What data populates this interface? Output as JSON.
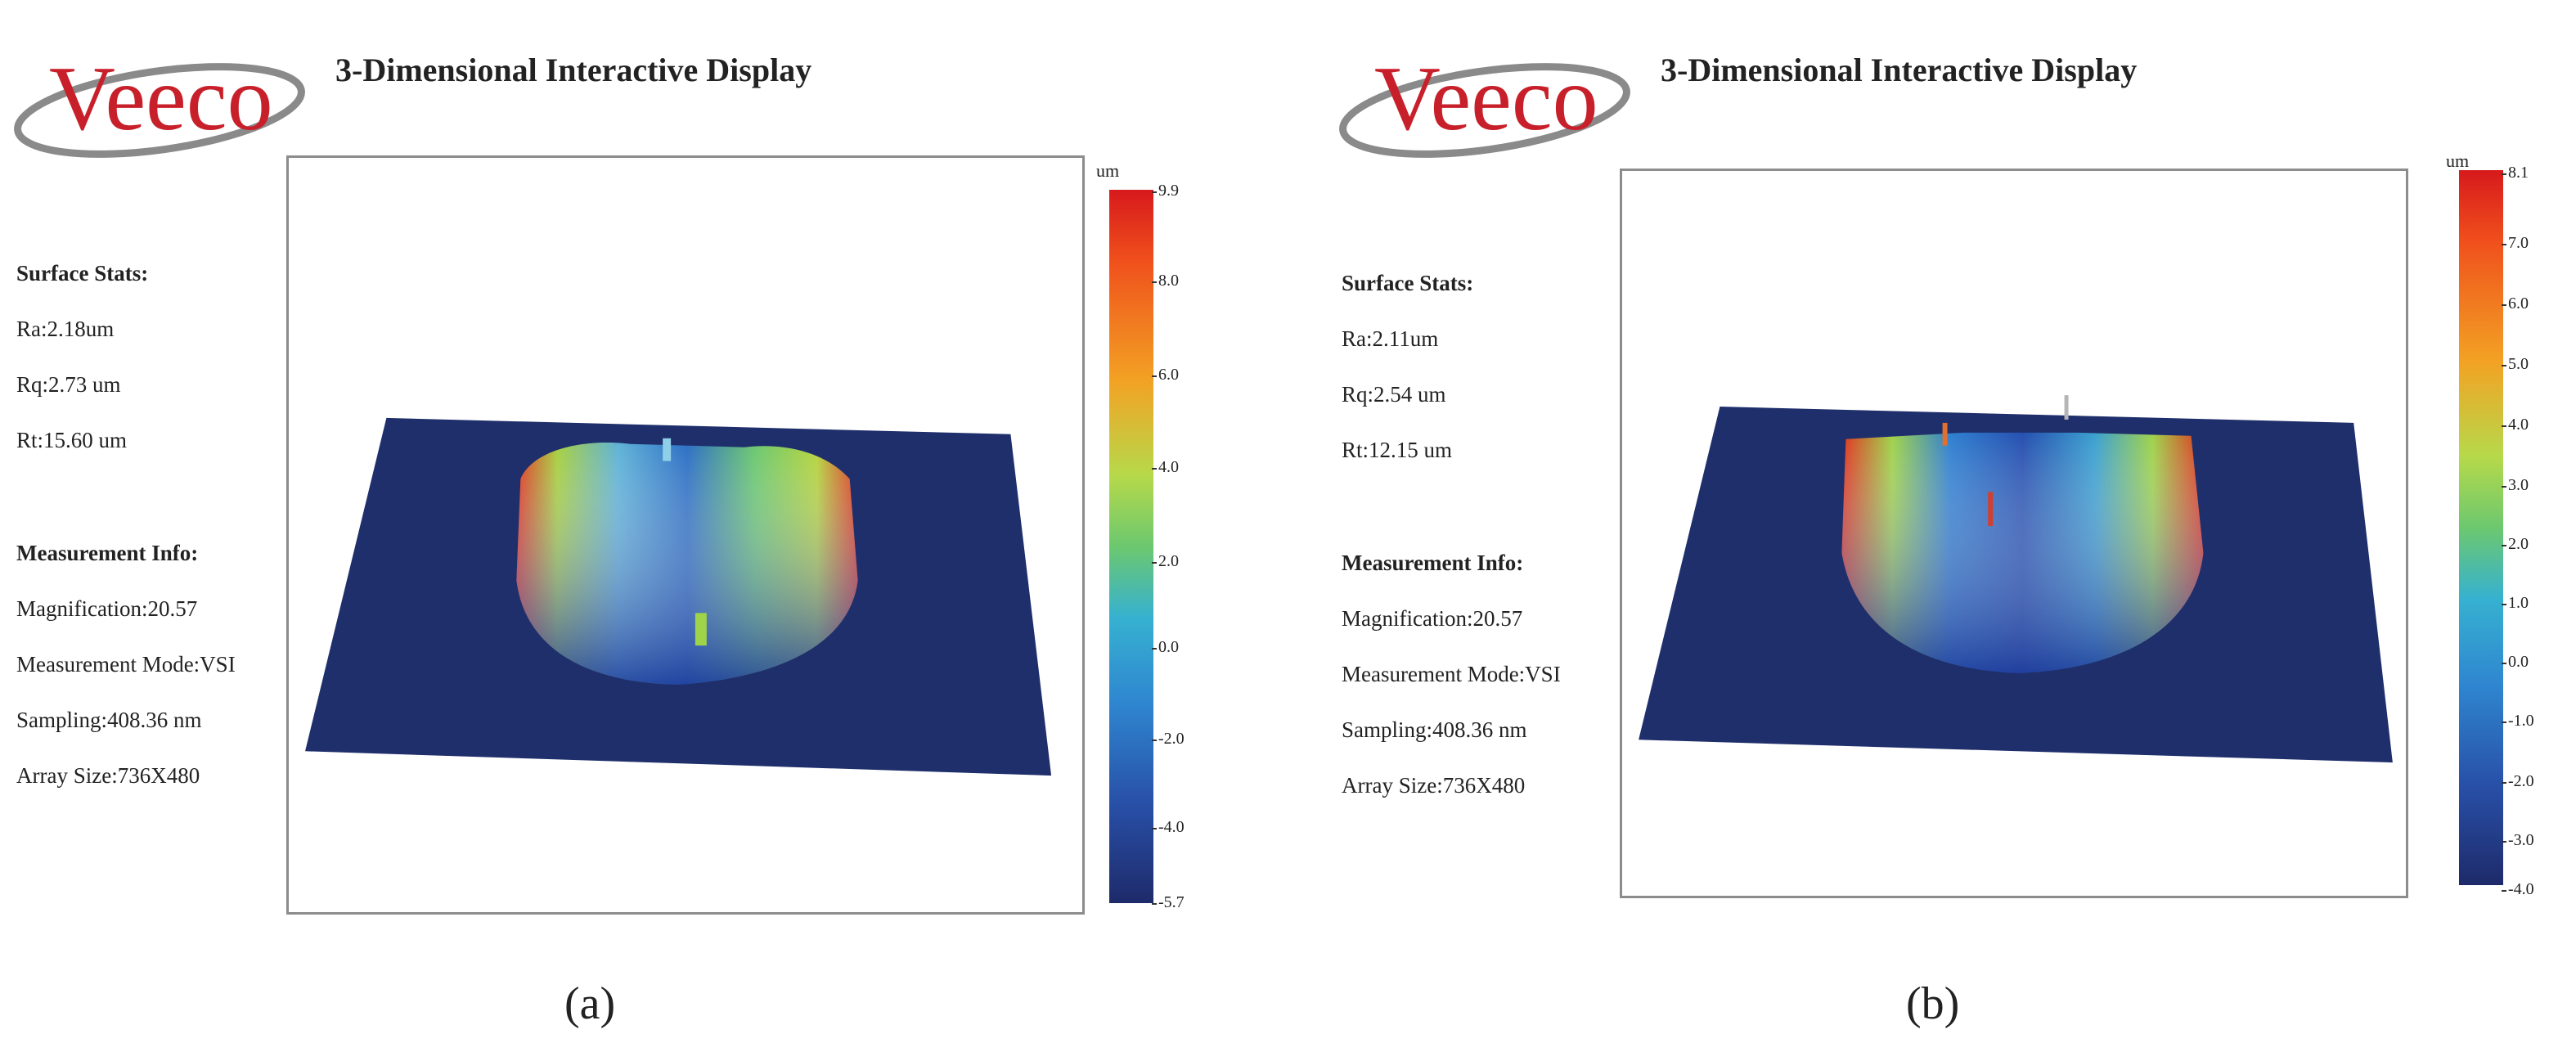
{
  "panels": [
    {
      "label": "(a)",
      "logo_text": "Veeco",
      "title": "3-Dimensional Interactive Display",
      "surface_stats_heading": "Surface Stats:",
      "ra": "Ra:2.18um",
      "rq": "Rq:2.73 um",
      "rt": "Rt:15.60 um",
      "measurement_heading": "Measurement Info:",
      "magnification": "Magnification:20.57",
      "mode": "Measurement Mode:VSI",
      "sampling": "Sampling:408.36 nm",
      "array_size": "Array Size:736X480",
      "colorbar_unit": "um",
      "colorbar_ticks": [
        "9.9",
        "8.0",
        "6.0",
        "4.0",
        "2.0",
        "0.0",
        "-2.0",
        "-4.0",
        "-5.7"
      ]
    },
    {
      "label": "(b)",
      "logo_text": "Veeco",
      "title": "3-Dimensional Interactive Display",
      "surface_stats_heading": "Surface Stats:",
      "ra": "Ra:2.11um",
      "rq": "Rq:2.54 um",
      "rt": "Rt:12.15 um",
      "measurement_heading": "Measurement Info:",
      "magnification": "Magnification:20.57",
      "mode": "Measurement Mode:VSI",
      "sampling": "Sampling:408.36 nm",
      "array_size": "Array Size:736X480",
      "colorbar_unit": "um",
      "colorbar_ticks": [
        "8.1",
        "7.0",
        "6.0",
        "5.0",
        "4.0",
        "3.0",
        "2.0",
        "1.0",
        "0.0",
        "-1.0",
        "-2.0",
        "-3.0",
        "-4.0"
      ]
    }
  ],
  "colors": {
    "surface_base": "#1f2f6b",
    "logo_red": "#c8202a",
    "logo_swoosh": "#888888"
  }
}
